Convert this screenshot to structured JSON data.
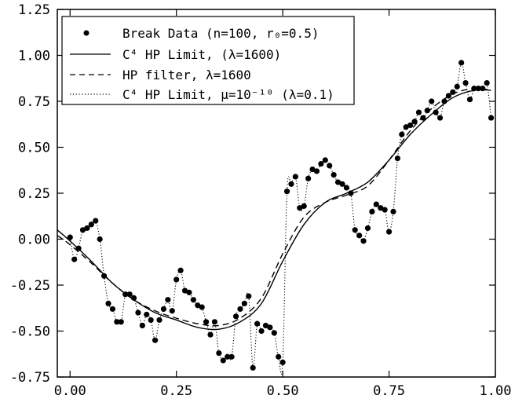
{
  "chart_data": {
    "type": "scatter",
    "title": "",
    "xlabel": "",
    "ylabel": "",
    "xlim": [
      -0.03,
      1.0
    ],
    "ylim": [
      -0.75,
      1.25
    ],
    "x_ticks": [
      0.0,
      0.25,
      0.5,
      0.75,
      1.0
    ],
    "x_tick_labels": [
      "0.00",
      "0.25",
      "0.50",
      "0.75",
      "1.00"
    ],
    "y_ticks": [
      -0.75,
      -0.5,
      -0.25,
      0.0,
      0.25,
      0.5,
      0.75,
      1.0,
      1.25
    ],
    "y_tick_labels": [
      "-0.75",
      "-0.50",
      "-0.25",
      "0.00",
      "0.25",
      "0.50",
      "0.75",
      "1.00",
      "1.25"
    ],
    "grid": false,
    "legend_position": "top-left",
    "legend": [
      {
        "text": "Break Data (n=100, r₀=0.5)",
        "style": "dot"
      },
      {
        "text": "C⁴ HP Limit, (λ=1600)",
        "style": "solid"
      },
      {
        "text": "HP filter, λ=1600",
        "style": "dashed"
      },
      {
        "text": "C⁴ HP Limit, μ=10⁻¹⁰ (λ=0.1)",
        "style": "dotted"
      }
    ],
    "series": [
      {
        "name": "Break Data (n=100, r₀=0.5)",
        "style": "dot",
        "x": [
          0.0,
          0.01,
          0.02,
          0.03,
          0.04,
          0.05,
          0.06,
          0.07,
          0.08,
          0.09,
          0.1,
          0.11,
          0.12,
          0.13,
          0.14,
          0.15,
          0.16,
          0.17,
          0.18,
          0.19,
          0.2,
          0.21,
          0.22,
          0.23,
          0.24,
          0.25,
          0.26,
          0.27,
          0.28,
          0.29,
          0.3,
          0.31,
          0.32,
          0.33,
          0.34,
          0.35,
          0.36,
          0.37,
          0.38,
          0.39,
          0.4,
          0.41,
          0.42,
          0.43,
          0.44,
          0.45,
          0.46,
          0.47,
          0.48,
          0.49,
          0.5,
          0.51,
          0.52,
          0.53,
          0.54,
          0.55,
          0.56,
          0.57,
          0.58,
          0.59,
          0.6,
          0.61,
          0.62,
          0.63,
          0.64,
          0.65,
          0.66,
          0.67,
          0.68,
          0.69,
          0.7,
          0.71,
          0.72,
          0.73,
          0.74,
          0.75,
          0.76,
          0.77,
          0.78,
          0.79,
          0.8,
          0.81,
          0.82,
          0.83,
          0.84,
          0.85,
          0.86,
          0.87,
          0.88,
          0.89,
          0.9,
          0.91,
          0.92,
          0.93,
          0.94,
          0.95,
          0.96,
          0.97,
          0.98,
          0.99
        ],
        "y": [
          0.01,
          -0.11,
          -0.05,
          0.05,
          0.06,
          0.08,
          0.1,
          0.0,
          -0.2,
          -0.35,
          -0.38,
          -0.45,
          -0.45,
          -0.3,
          -0.3,
          -0.32,
          -0.4,
          -0.47,
          -0.41,
          -0.44,
          -0.55,
          -0.44,
          -0.38,
          -0.33,
          -0.39,
          -0.22,
          -0.17,
          -0.28,
          -0.29,
          -0.33,
          -0.36,
          -0.37,
          -0.45,
          -0.52,
          -0.45,
          -0.62,
          -0.66,
          -0.64,
          -0.64,
          -0.42,
          -0.38,
          -0.35,
          -0.31,
          -0.7,
          -0.46,
          -0.5,
          -0.47,
          -0.48,
          -0.51,
          -0.64,
          -0.67,
          0.26,
          0.3,
          0.34,
          0.17,
          0.18,
          0.33,
          0.38,
          0.37,
          0.41,
          0.43,
          0.4,
          0.35,
          0.31,
          0.3,
          0.28,
          0.25,
          0.05,
          0.02,
          -0.01,
          0.06,
          0.15,
          0.19,
          0.17,
          0.16,
          0.04,
          0.15,
          0.44,
          0.57,
          0.61,
          0.62,
          0.64,
          0.69,
          0.66,
          0.7,
          0.75,
          0.69,
          0.66,
          0.75,
          0.78,
          0.8,
          0.83,
          0.96,
          0.85,
          0.76,
          0.82,
          0.82,
          0.82,
          0.85,
          0.66
        ]
      },
      {
        "name": "C⁴ HP Limit, (λ=1600)",
        "style": "solid",
        "x": [
          -0.03,
          0.0,
          0.05,
          0.1,
          0.15,
          0.2,
          0.25,
          0.3,
          0.35,
          0.4,
          0.45,
          0.5,
          0.55,
          0.6,
          0.65,
          0.7,
          0.75,
          0.8,
          0.85,
          0.9,
          0.95,
          0.99
        ],
        "y": [
          0.05,
          -0.01,
          -0.12,
          -0.24,
          -0.33,
          -0.4,
          -0.44,
          -0.48,
          -0.49,
          -0.45,
          -0.35,
          -0.12,
          0.08,
          0.2,
          0.25,
          0.31,
          0.43,
          0.57,
          0.68,
          0.77,
          0.81,
          0.81
        ]
      },
      {
        "name": "HP filter, λ=1600",
        "style": "dashed",
        "x": [
          -0.03,
          0.0,
          0.05,
          0.1,
          0.15,
          0.2,
          0.25,
          0.3,
          0.35,
          0.4,
          0.45,
          0.5,
          0.55,
          0.6,
          0.65,
          0.7,
          0.75,
          0.8,
          0.85,
          0.9,
          0.95,
          0.99
        ],
        "y": [
          0.02,
          -0.03,
          -0.13,
          -0.24,
          -0.33,
          -0.39,
          -0.43,
          -0.46,
          -0.47,
          -0.43,
          -0.32,
          -0.08,
          0.12,
          0.2,
          0.24,
          0.29,
          0.43,
          0.59,
          0.71,
          0.79,
          0.82,
          0.81
        ]
      },
      {
        "name": "C⁴ HP Limit, μ=10⁻¹⁰ (λ=0.1)",
        "style": "dotted",
        "interpolates": "Break Data (n=100, r₀=0.5)"
      }
    ]
  }
}
